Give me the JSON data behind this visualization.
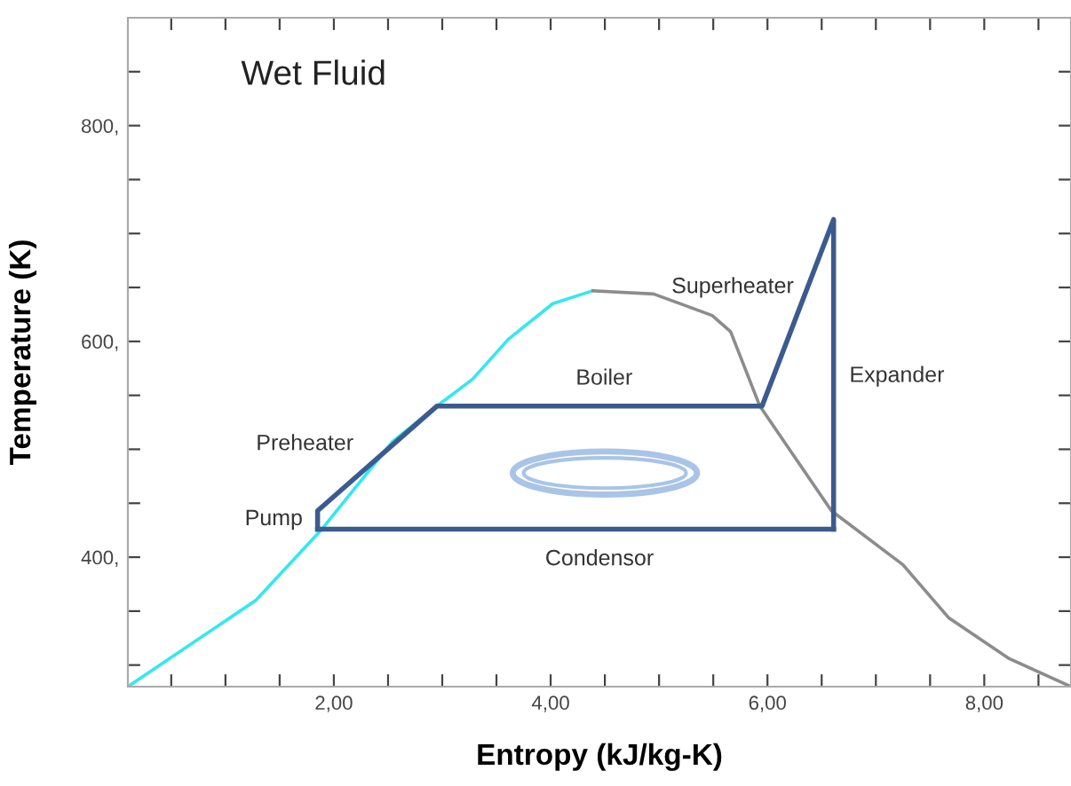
{
  "chart_data": {
    "type": "line",
    "title": "Wet Fluid",
    "xlabel": "Entropy (kJ/kg-K)",
    "ylabel": "Temperature (K)",
    "xlim": [
      0.1,
      8.8
    ],
    "ylim": [
      280,
      900
    ],
    "xticks": [
      {
        "value": 0.5,
        "label": null
      },
      {
        "value": 1,
        "label": null
      },
      {
        "value": 1.5,
        "label": null
      },
      {
        "value": 2,
        "label": "2,00"
      },
      {
        "value": 2.5,
        "label": null
      },
      {
        "value": 3,
        "label": null
      },
      {
        "value": 3.5,
        "label": null
      },
      {
        "value": 4,
        "label": "4,00"
      },
      {
        "value": 4.5,
        "label": null
      },
      {
        "value": 5,
        "label": null
      },
      {
        "value": 5.5,
        "label": null
      },
      {
        "value": 6,
        "label": "6,00"
      },
      {
        "value": 6.5,
        "label": null
      },
      {
        "value": 7,
        "label": null
      },
      {
        "value": 7.5,
        "label": null
      },
      {
        "value": 8,
        "label": "8,00"
      },
      {
        "value": 8.5,
        "label": null
      }
    ],
    "yticks": [
      {
        "value": 300,
        "label": null
      },
      {
        "value": 350,
        "label": null
      },
      {
        "value": 400,
        "label": "400,"
      },
      {
        "value": 450,
        "label": null
      },
      {
        "value": 500,
        "label": null
      },
      {
        "value": 550,
        "label": null
      },
      {
        "value": 600,
        "label": "600,"
      },
      {
        "value": 650,
        "label": null
      },
      {
        "value": 700,
        "label": null
      },
      {
        "value": 750,
        "label": null
      },
      {
        "value": 800,
        "label": "800,"
      },
      {
        "value": 850,
        "label": null
      }
    ],
    "grid": false,
    "marker": "none",
    "line_style": "solid",
    "series": [
      {
        "color": "#33e8f0",
        "x": [
          0.1,
          1.28,
          1.89,
          2.54,
          2.95,
          3.28,
          3.61,
          4.02,
          4.39
        ],
        "values": [
          280,
          360,
          426,
          507,
          540,
          565,
          602,
          635,
          647
        ]
      },
      {
        "color": "#8c8c8c",
        "x": [
          4.39,
          4.95,
          5.49,
          5.66,
          5.93,
          6.59,
          7.25,
          7.67,
          8.23,
          8.8
        ],
        "values": [
          647,
          644,
          624,
          609,
          540,
          443,
          393,
          344,
          306,
          280
        ]
      },
      {
        "color": "#3b5b8e",
        "x": [
          1.85,
          1.85,
          2.95,
          5.95,
          6.61,
          6.61
        ],
        "values": [
          426,
          443,
          540,
          540,
          713,
          426
        ]
      },
      {
        "color": "#3b5b8e",
        "x": [
          1.85,
          6.61
        ],
        "values": [
          426,
          426
        ]
      }
    ],
    "annotations": [
      {
        "text": "Pump",
        "x": 1.85,
        "y": 435
      },
      {
        "text": "Preheater",
        "x": 2.5,
        "y": 500
      },
      "Boiler",
      "Superheater",
      "Expander",
      "Condensor"
    ]
  }
}
